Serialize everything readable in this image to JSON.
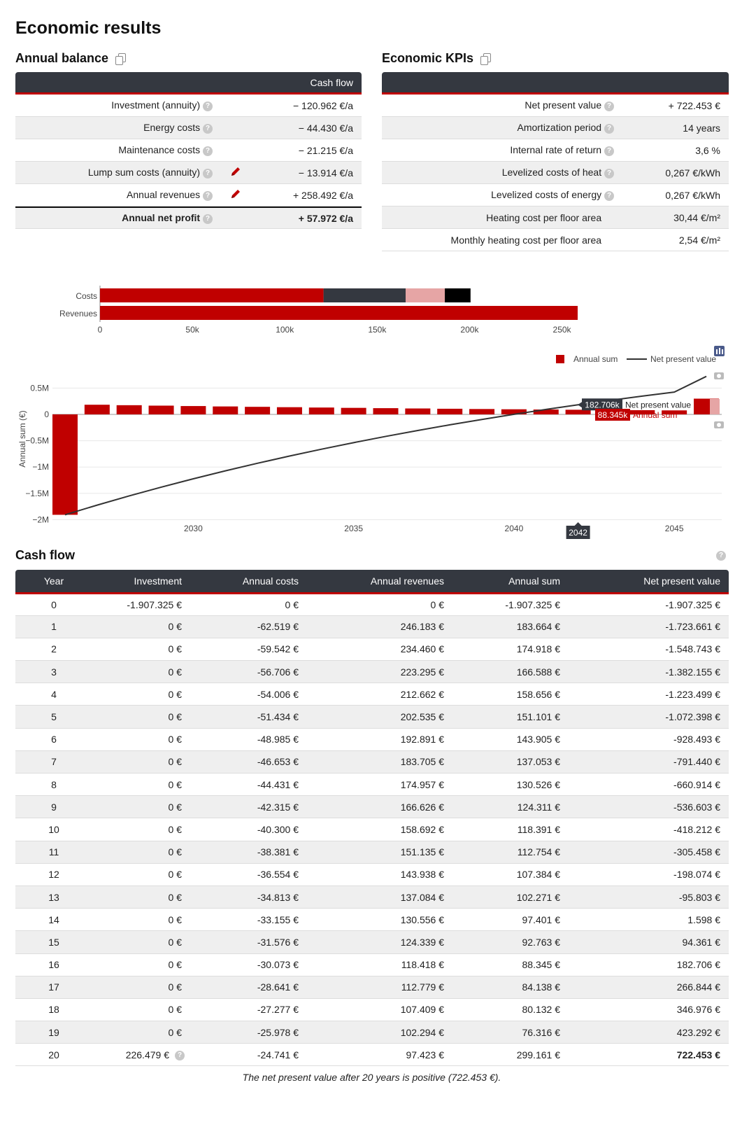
{
  "page_title": "Economic results",
  "annual_balance": {
    "title": "Annual balance",
    "column_header": "Cash flow",
    "rows": [
      {
        "label": "Investment (annuity)",
        "value": "− 120.962 €/a",
        "editable": false
      },
      {
        "label": "Energy costs",
        "value": "− 44.430 €/a",
        "editable": false
      },
      {
        "label": "Maintenance costs",
        "value": "− 21.215 €/a",
        "editable": false
      },
      {
        "label": "Lump sum costs (annuity)",
        "value": "− 13.914 €/a",
        "editable": true
      },
      {
        "label": "Annual revenues",
        "value": "+ 258.492 €/a",
        "editable": true
      }
    ],
    "total": {
      "label": "Annual net profit",
      "value": "+ 57.972 €/a"
    }
  },
  "economic_kpis": {
    "title": "Economic KPIs",
    "rows": [
      {
        "label": "Net present value",
        "value": "+ 722.453 €",
        "help": true
      },
      {
        "label": "Amortization period",
        "value": "14 years",
        "help": true
      },
      {
        "label": "Internal rate of return",
        "value": "3,6 %",
        "help": true
      },
      {
        "label": "Levelized costs of heat",
        "value": "0,267 €/kWh",
        "help": true
      },
      {
        "label": "Levelized costs of energy",
        "value": "0,267 €/kWh",
        "help": true
      },
      {
        "label": "Heating cost per floor area",
        "value": "30,44 €/m²",
        "help": false
      },
      {
        "label": "Monthly heating cost per floor area",
        "value": "2,54 €/m²",
        "help": false
      }
    ]
  },
  "colors": {
    "accent": "#c00000",
    "header_bg": "#343840",
    "alt_row": "#efefef",
    "pink": "#e6a5a5"
  },
  "chart_data": [
    {
      "type": "bar",
      "orientation": "horizontal-stacked",
      "categories": [
        "Costs",
        "Revenues"
      ],
      "series": [
        {
          "values": [
            120962,
            0
          ],
          "color": "#c00000"
        },
        {
          "values": [
            44430,
            0
          ],
          "color": "#343840"
        },
        {
          "values": [
            21215,
            0
          ],
          "color": "#e6a5a5"
        },
        {
          "values": [
            13914,
            0
          ],
          "color": "#000000"
        },
        {
          "values": [
            0,
            258492
          ],
          "color": "#c00000"
        }
      ],
      "xlim": [
        0,
        270000
      ],
      "x_ticks": [
        "0",
        "50k",
        "100k",
        "150k",
        "200k",
        "250k"
      ],
      "x_tick_values": [
        0,
        50000,
        100000,
        150000,
        200000,
        250000
      ]
    },
    {
      "type": "bar+line",
      "x": [
        2026,
        2027,
        2028,
        2029,
        2030,
        2031,
        2032,
        2033,
        2034,
        2035,
        2036,
        2037,
        2038,
        2039,
        2040,
        2041,
        2042,
        2043,
        2044,
        2045,
        2046
      ],
      "series": [
        {
          "name": "Annual sum",
          "type": "bar",
          "color": "#c00000",
          "values": [
            -1907325,
            183664,
            174918,
            166588,
            158656,
            151101,
            143905,
            137053,
            130526,
            124311,
            118391,
            112754,
            107384,
            102271,
            97401,
            92763,
            88345,
            84138,
            80132,
            76316,
            299161
          ]
        },
        {
          "name": "Net present value",
          "type": "line",
          "color": "#333333",
          "values": [
            -1907325,
            -1723661,
            -1548743,
            -1382155,
            -1223499,
            -1072398,
            -928493,
            -791440,
            -660914,
            -536603,
            -418212,
            -305458,
            -198074,
            -95803,
            1598,
            94361,
            182706,
            266844,
            346976,
            423292,
            722453
          ]
        }
      ],
      "ylabel": "Annual sum (€)",
      "ylim": [
        -2000000,
        600000
      ],
      "y_ticks": [
        "0.5M",
        "0",
        "−0.5M",
        "−1M",
        "−1.5M",
        "−2M"
      ],
      "y_tick_values": [
        500000,
        0,
        -500000,
        -1000000,
        -1500000,
        -2000000
      ],
      "x_ticks": [
        "2030",
        "2035",
        "2040",
        "2045"
      ],
      "x_tick_values": [
        2030,
        2035,
        2040,
        2045
      ],
      "legend": "top-right",
      "hover": {
        "year": "2042",
        "npv_label": "182.706k",
        "npv_name": "Net present value",
        "sum_label": "88.345k",
        "sum_name": "Annual sum"
      }
    }
  ],
  "cash_flow": {
    "title": "Cash flow",
    "headers": [
      "Year",
      "Investment",
      "Annual costs",
      "Annual revenues",
      "Annual sum",
      "Net present value"
    ],
    "rows": [
      [
        "0",
        "-1.907.325 €",
        "0 €",
        "0 €",
        "-1.907.325 €",
        "-1.907.325 €"
      ],
      [
        "1",
        "0 €",
        "-62.519 €",
        "246.183 €",
        "183.664 €",
        "-1.723.661 €"
      ],
      [
        "2",
        "0 €",
        "-59.542 €",
        "234.460 €",
        "174.918 €",
        "-1.548.743 €"
      ],
      [
        "3",
        "0 €",
        "-56.706 €",
        "223.295 €",
        "166.588 €",
        "-1.382.155 €"
      ],
      [
        "4",
        "0 €",
        "-54.006 €",
        "212.662 €",
        "158.656 €",
        "-1.223.499 €"
      ],
      [
        "5",
        "0 €",
        "-51.434 €",
        "202.535 €",
        "151.101 €",
        "-1.072.398 €"
      ],
      [
        "6",
        "0 €",
        "-48.985 €",
        "192.891 €",
        "143.905 €",
        "-928.493 €"
      ],
      [
        "7",
        "0 €",
        "-46.653 €",
        "183.705 €",
        "137.053 €",
        "-791.440 €"
      ],
      [
        "8",
        "0 €",
        "-44.431 €",
        "174.957 €",
        "130.526 €",
        "-660.914 €"
      ],
      [
        "9",
        "0 €",
        "-42.315 €",
        "166.626 €",
        "124.311 €",
        "-536.603 €"
      ],
      [
        "10",
        "0 €",
        "-40.300 €",
        "158.692 €",
        "118.391 €",
        "-418.212 €"
      ],
      [
        "11",
        "0 €",
        "-38.381 €",
        "151.135 €",
        "112.754 €",
        "-305.458 €"
      ],
      [
        "12",
        "0 €",
        "-36.554 €",
        "143.938 €",
        "107.384 €",
        "-198.074 €"
      ],
      [
        "13",
        "0 €",
        "-34.813 €",
        "137.084 €",
        "102.271 €",
        "-95.803 €"
      ],
      [
        "14",
        "0 €",
        "-33.155 €",
        "130.556 €",
        "97.401 €",
        "1.598 €"
      ],
      [
        "15",
        "0 €",
        "-31.576 €",
        "124.339 €",
        "92.763 €",
        "94.361 €"
      ],
      [
        "16",
        "0 €",
        "-30.073 €",
        "118.418 €",
        "88.345 €",
        "182.706 €"
      ],
      [
        "17",
        "0 €",
        "-28.641 €",
        "112.779 €",
        "84.138 €",
        "266.844 €"
      ],
      [
        "18",
        "0 €",
        "-27.277 €",
        "107.409 €",
        "80.132 €",
        "346.976 €"
      ],
      [
        "19",
        "0 €",
        "-25.978 €",
        "102.294 €",
        "76.316 €",
        "423.292 €"
      ],
      [
        "20",
        "226.479 €",
        "-24.741 €",
        "97.423 €",
        "299.161 €",
        "722.453 €"
      ]
    ],
    "note": "The net present value after 20 years is positive (722.453 €)."
  }
}
